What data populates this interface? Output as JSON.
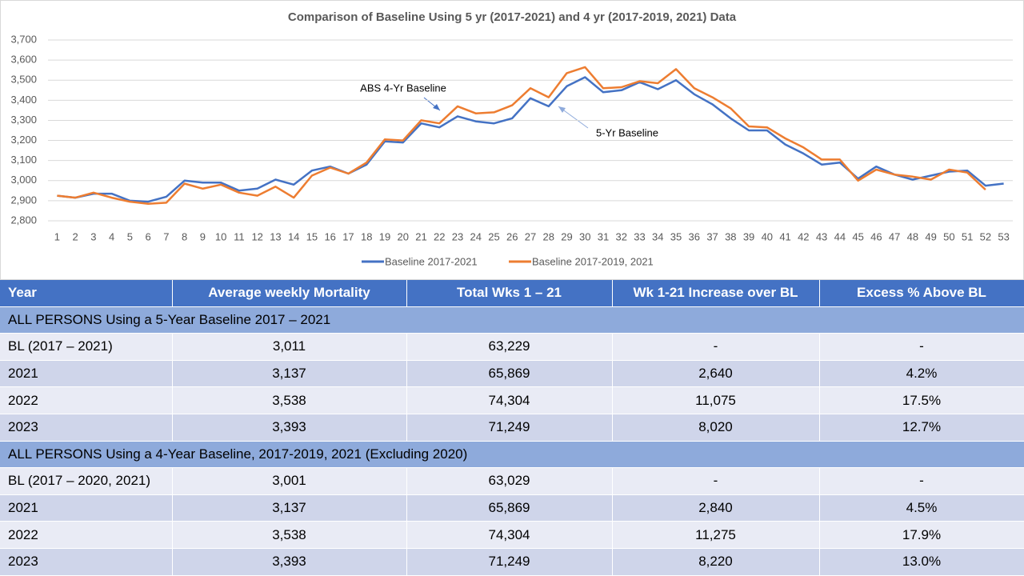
{
  "chart_data": {
    "type": "line",
    "title": "Comparison of Baseline Using 5 yr (2017-2021) and 4 yr (2017-2019, 2021) Data",
    "x": [
      1,
      2,
      3,
      4,
      5,
      6,
      7,
      8,
      9,
      10,
      11,
      12,
      13,
      14,
      15,
      16,
      17,
      18,
      19,
      20,
      21,
      22,
      23,
      24,
      25,
      26,
      27,
      28,
      29,
      30,
      31,
      32,
      33,
      34,
      35,
      36,
      37,
      38,
      39,
      40,
      41,
      42,
      43,
      44,
      45,
      46,
      47,
      48,
      49,
      50,
      51,
      52,
      53
    ],
    "xticks": [
      1,
      2,
      3,
      4,
      5,
      6,
      7,
      8,
      9,
      10,
      11,
      12,
      13,
      14,
      15,
      16,
      17,
      18,
      19,
      20,
      21,
      22,
      23,
      24,
      25,
      26,
      27,
      28,
      29,
      30,
      31,
      32,
      33,
      34,
      35,
      36,
      37,
      38,
      39,
      40,
      41,
      42,
      43,
      44,
      45,
      46,
      47,
      48,
      49,
      50,
      51,
      52,
      53
    ],
    "xlim": [
      0.5,
      53.5
    ],
    "ylim": [
      2800,
      3700
    ],
    "yticks": [
      {
        "value": 2800,
        "label": "2,800"
      },
      {
        "value": 2900,
        "label": "2,900"
      },
      {
        "value": 3000,
        "label": "3,000"
      },
      {
        "value": 3100,
        "label": "3,100"
      },
      {
        "value": 3200,
        "label": "3,200"
      },
      {
        "value": 3300,
        "label": "3,300"
      },
      {
        "value": 3400,
        "label": "3,400"
      },
      {
        "value": 3500,
        "label": "3,500"
      },
      {
        "value": 3600,
        "label": "3,600"
      },
      {
        "value": 3700,
        "label": "3,700"
      }
    ],
    "grid": true,
    "legend": "bottom",
    "series": [
      {
        "name": "Baseline 2017-2021",
        "color": "#4472c4",
        "values": [
          2925,
          2915,
          2935,
          2935,
          2900,
          2895,
          2920,
          3000,
          2990,
          2990,
          2950,
          2960,
          3005,
          2980,
          3050,
          3070,
          3035,
          3080,
          3195,
          3190,
          3285,
          3265,
          3320,
          3295,
          3285,
          3310,
          3410,
          3370,
          3470,
          3515,
          3440,
          3450,
          3490,
          3455,
          3500,
          3430,
          3380,
          3310,
          3250,
          3250,
          3180,
          3135,
          3080,
          3090,
          3010,
          3070,
          3030,
          3005,
          3025,
          3045,
          3050,
          2975,
          2985
        ]
      },
      {
        "name": "Baseline 2017-2019, 2021",
        "color": "#ed7d31",
        "values": [
          2925,
          2915,
          2940,
          2915,
          2895,
          2885,
          2890,
          2985,
          2960,
          2980,
          2940,
          2925,
          2970,
          2915,
          3025,
          3065,
          3035,
          3090,
          3205,
          3200,
          3300,
          3285,
          3370,
          3335,
          3340,
          3375,
          3460,
          3415,
          3535,
          3565,
          3460,
          3465,
          3495,
          3485,
          3555,
          3460,
          3415,
          3360,
          3270,
          3265,
          3210,
          3165,
          3105,
          3105,
          3000,
          3055,
          3030,
          3020,
          3005,
          3055,
          3040,
          2955,
          null
        ]
      }
    ],
    "annotations": [
      "ABS 4-Yr Baseline",
      "5-Yr Baseline"
    ]
  },
  "table": {
    "header": [
      "Year",
      "Average weekly Mortality",
      "Total Wks 1 – 21",
      "Wk 1-21 Increase over BL",
      "Excess % Above BL"
    ],
    "sections": [
      {
        "title": "ALL PERSONS Using a 5-Year Baseline 2017 – 2021",
        "rows": [
          [
            "BL (2017 – 2021)",
            "3,011",
            "63,229",
            "-",
            "-"
          ],
          [
            "2021",
            "3,137",
            "65,869",
            "2,640",
            "4.2%"
          ],
          [
            "2022",
            "3,538",
            "74,304",
            "11,075",
            "17.5%"
          ],
          [
            "2023",
            "3,393",
            "71,249",
            "8,020",
            "12.7%"
          ]
        ]
      },
      {
        "title": "ALL PERSONS Using a 4-Year Baseline, 2017-2019, 2021 (Excluding 2020)",
        "rows": [
          [
            "BL (2017 – 2020, 2021)",
            "3,001",
            "63,029",
            "-",
            "-"
          ],
          [
            "2021",
            "3,137",
            "65,869",
            "2,840",
            "4.5%"
          ],
          [
            "2022",
            "3,538",
            "74,304",
            "11,275",
            "17.9%"
          ],
          [
            "2023",
            "3,393",
            "71,249",
            "8,220",
            "13.0%"
          ]
        ]
      }
    ]
  }
}
